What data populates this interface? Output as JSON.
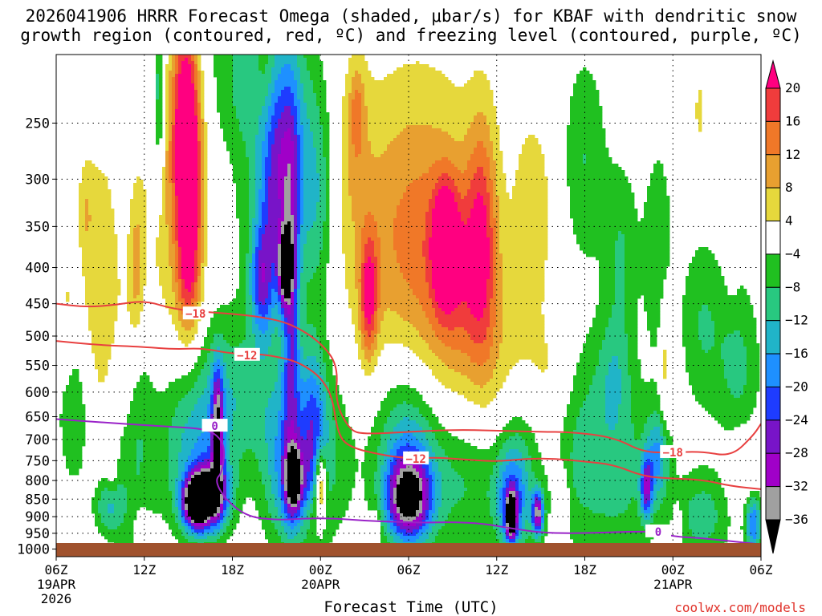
{
  "header": {
    "title_line1": "2026041906 HRRR Forecast Omega (shaded, μbar/s) for KBAF with dendritic snow",
    "title_line2": "growth region (contoured, red, ºC) and freezing level (contoured, purple, ºC)"
  },
  "footer": {
    "xlabel": "Forecast Time (UTC)",
    "credit": "coolwx.com/models"
  },
  "chart_data": {
    "type": "heatmap",
    "x_ticks": [
      {
        "hour": 0,
        "label": "06Z",
        "sub1": "19APR",
        "sub2": "2026"
      },
      {
        "hour": 6,
        "label": "12Z",
        "sub1": "",
        "sub2": ""
      },
      {
        "hour": 12,
        "label": "18Z",
        "sub1": "",
        "sub2": ""
      },
      {
        "hour": 18,
        "label": "00Z",
        "sub1": "20APR",
        "sub2": ""
      },
      {
        "hour": 24,
        "label": "06Z",
        "sub1": "",
        "sub2": ""
      },
      {
        "hour": 30,
        "label": "12Z",
        "sub1": "",
        "sub2": ""
      },
      {
        "hour": 36,
        "label": "18Z",
        "sub1": "",
        "sub2": ""
      },
      {
        "hour": 42,
        "label": "00Z",
        "sub1": "21APR",
        "sub2": ""
      },
      {
        "hour": 48,
        "label": "06Z",
        "sub1": "",
        "sub2": ""
      }
    ],
    "xlim": [
      0,
      48
    ],
    "y_ticks": [
      250,
      300,
      350,
      400,
      450,
      500,
      550,
      600,
      650,
      700,
      750,
      800,
      850,
      900,
      950,
      1000
    ],
    "ylim": [
      200,
      1025
    ],
    "y_scale": "log-pressure",
    "colorbar": {
      "labels": [
        "20",
        "16",
        "12",
        "8",
        "4",
        "−4",
        "−8",
        "−12",
        "−16",
        "−20",
        "−24",
        "−28",
        "−32",
        "−36"
      ],
      "colors": [
        "#ff0080",
        "#f03c3c",
        "#f07828",
        "#e8a030",
        "#e6d83c",
        "#ffffff",
        "#20c020",
        "#28c880",
        "#20b4c8",
        "#1e90ff",
        "#1e3cff",
        "#7814c8",
        "#a000c8",
        "#a0a0a0",
        "#000000"
      ]
    },
    "omega_blobs": [
      {
        "t": 3.0,
        "p": 480,
        "max": 9,
        "w": 1.4,
        "h": 0.55
      },
      {
        "t": 2.0,
        "p": 330,
        "max": 5,
        "w": 0.5,
        "h": 0.15
      },
      {
        "t": 0.7,
        "p": 460,
        "max": 5,
        "w": 0.5,
        "h": 0.2
      },
      {
        "t": 5.5,
        "p": 400,
        "max": 9,
        "w": 0.5,
        "h": 0.25
      },
      {
        "t": 8.8,
        "p": 240,
        "max": 19,
        "w": 0.9,
        "h": 0.35
      },
      {
        "t": 9.1,
        "p": 330,
        "max": 20,
        "w": 0.9,
        "h": 0.4
      },
      {
        "t": 7.5,
        "p": 330,
        "max": 6,
        "w": 1.6,
        "h": 0.6
      },
      {
        "t": 4.8,
        "p": 560,
        "max": 5,
        "w": 0.7,
        "h": 0.35
      },
      {
        "t": 3.8,
        "p": 780,
        "max": 5,
        "w": 0.35,
        "h": 0.08
      },
      {
        "t": 14.2,
        "p": 210,
        "max": 6,
        "w": 0.7,
        "h": 0.25
      },
      {
        "t": 15.5,
        "p": 290,
        "max": -13,
        "w": 1.2,
        "h": 0.3
      },
      {
        "t": 14.5,
        "p": 330,
        "max": -10,
        "w": 1.0,
        "h": 0.35
      },
      {
        "t": 16.0,
        "p": 260,
        "max": -9,
        "w": 2.0,
        "h": 0.5
      },
      {
        "t": 17.8,
        "p": 320,
        "max": -10,
        "w": 1.2,
        "h": 0.35
      },
      {
        "t": 7.0,
        "p": 230,
        "max": -13,
        "w": 0.4,
        "h": 0.3
      },
      {
        "t": 20.5,
        "p": 240,
        "max": 8,
        "w": 0.5,
        "h": 0.15
      },
      {
        "t": 20.2,
        "p": 270,
        "max": 5,
        "w": 1.2,
        "h": 0.3
      },
      {
        "t": 24.5,
        "p": 380,
        "max": 14,
        "w": 4.5,
        "h": 0.55
      },
      {
        "t": 26.5,
        "p": 370,
        "max": 21,
        "w": 0.8,
        "h": 0.18
      },
      {
        "t": 27.5,
        "p": 410,
        "max": 10,
        "w": 2.0,
        "h": 0.3
      },
      {
        "t": 21.3,
        "p": 440,
        "max": 18,
        "w": 0.6,
        "h": 0.2
      },
      {
        "t": 29.0,
        "p": 360,
        "max": 14,
        "w": 1.0,
        "h": 0.4
      },
      {
        "t": 32.5,
        "p": 330,
        "max": 7,
        "w": 1.3,
        "h": 0.3
      },
      {
        "t": 31.0,
        "p": 560,
        "max": 6,
        "w": 2.5,
        "h": 0.3
      },
      {
        "t": 34.0,
        "p": 580,
        "max": 4.5,
        "w": 1.5,
        "h": 0.2
      },
      {
        "t": 43.8,
        "p": 240,
        "max": 5,
        "w": 0.4,
        "h": 0.15
      },
      {
        "t": 46.0,
        "p": 370,
        "max": 5.5,
        "w": 0.4,
        "h": 0.15
      },
      {
        "t": 41.5,
        "p": 540,
        "max": 8,
        "w": 0.4,
        "h": 0.25
      },
      {
        "t": 46.8,
        "p": 770,
        "max": 6,
        "w": 1.2,
        "h": 0.15
      },
      {
        "t": 34.5,
        "p": 850,
        "max": 8,
        "w": 0.4,
        "h": 0.1
      },
      {
        "t": 42.3,
        "p": 930,
        "max": 8,
        "w": 0.3,
        "h": 0.07
      },
      {
        "t": 21.8,
        "p": 930,
        "max": 6,
        "w": 0.3,
        "h": 0.06
      },
      {
        "t": 5.8,
        "p": 930,
        "max": 6,
        "w": 0.5,
        "h": 0.06
      },
      {
        "t": 17.5,
        "p": 900,
        "max": 6,
        "w": 0.5,
        "h": 0.08
      },
      {
        "t": 11.6,
        "p": 290,
        "max": 3,
        "w": 4.0,
        "h": 0.2
      },
      {
        "t": 9.0,
        "p": 420,
        "max": 6,
        "w": 0.8,
        "h": 0.2
      },
      {
        "t": 13.0,
        "p": 230,
        "max": -10,
        "w": 2.5,
        "h": 0.5
      },
      {
        "t": 14.0,
        "p": 420,
        "max": -18,
        "w": 0.8,
        "h": 0.18
      },
      {
        "t": 15.6,
        "p": 400,
        "max": -30,
        "w": 0.5,
        "h": 0.12
      },
      {
        "t": 16.0,
        "p": 470,
        "max": -18,
        "w": 0.6,
        "h": 0.6
      },
      {
        "t": 12.0,
        "p": 600,
        "max": -10,
        "w": 4.5,
        "h": 0.25
      },
      {
        "t": 9.5,
        "p": 860,
        "max": -37,
        "w": 0.9,
        "h": 0.08
      },
      {
        "t": 10.5,
        "p": 840,
        "max": -32,
        "w": 1.2,
        "h": 0.1
      },
      {
        "t": 9.5,
        "p": 760,
        "max": -12,
        "w": 2.5,
        "h": 0.25
      },
      {
        "t": 11.0,
        "p": 680,
        "max": -26,
        "w": 0.4,
        "h": 0.2
      },
      {
        "t": 5.0,
        "p": 720,
        "max": -9,
        "w": 1.5,
        "h": 0.4
      },
      {
        "t": 3.5,
        "p": 870,
        "max": -12,
        "w": 1.0,
        "h": 0.1
      },
      {
        "t": 16.2,
        "p": 800,
        "max": -30,
        "w": 0.6,
        "h": 0.1
      },
      {
        "t": 15.5,
        "p": 780,
        "max": -14,
        "w": 1.5,
        "h": 0.25
      },
      {
        "t": 17.5,
        "p": 700,
        "max": -16,
        "w": 0.9,
        "h": 0.3
      },
      {
        "t": 18.0,
        "p": 810,
        "max": 21,
        "w": 0.4,
        "h": 0.12
      },
      {
        "t": 18.5,
        "p": 740,
        "max": -8,
        "w": 2.0,
        "h": 0.3
      },
      {
        "t": 24.0,
        "p": 850,
        "max": -30,
        "w": 1.4,
        "h": 0.12
      },
      {
        "t": 24.0,
        "p": 780,
        "max": -14,
        "w": 2.0,
        "h": 0.25
      },
      {
        "t": 23.5,
        "p": 650,
        "max": -8,
        "w": 2.5,
        "h": 0.35
      },
      {
        "t": 28.0,
        "p": 800,
        "max": -9,
        "w": 3.0,
        "h": 0.25
      },
      {
        "t": 31.0,
        "p": 900,
        "max": -38,
        "w": 0.35,
        "h": 0.07
      },
      {
        "t": 31.0,
        "p": 860,
        "max": -14,
        "w": 1.0,
        "h": 0.15
      },
      {
        "t": 32.8,
        "p": 890,
        "max": -30,
        "w": 0.4,
        "h": 0.07
      },
      {
        "t": 31.5,
        "p": 760,
        "max": -10,
        "w": 1.5,
        "h": 0.3
      },
      {
        "t": 35.5,
        "p": 700,
        "max": -8,
        "w": 2.0,
        "h": 0.35
      },
      {
        "t": 38.5,
        "p": 780,
        "max": -9,
        "w": 2.5,
        "h": 0.3
      },
      {
        "t": 40.2,
        "p": 820,
        "max": -22,
        "w": 0.4,
        "h": 0.1
      },
      {
        "t": 41.0,
        "p": 740,
        "max": -14,
        "w": 0.8,
        "h": 0.15
      },
      {
        "t": 44.0,
        "p": 900,
        "max": -10,
        "w": 2.0,
        "h": 0.15
      },
      {
        "t": 47.5,
        "p": 920,
        "max": -20,
        "w": 0.6,
        "h": 0.1
      },
      {
        "t": 41.0,
        "p": 380,
        "max": -8,
        "w": 1.0,
        "h": 0.35
      },
      {
        "t": 36.0,
        "p": 280,
        "max": -8,
        "w": 1.5,
        "h": 0.35
      },
      {
        "t": 38.5,
        "p": 380,
        "max": -8,
        "w": 1.2,
        "h": 0.3
      },
      {
        "t": 44.0,
        "p": 480,
        "max": -8,
        "w": 1.5,
        "h": 0.3
      },
      {
        "t": 46.5,
        "p": 560,
        "max": -9,
        "w": 1.5,
        "h": 0.3
      },
      {
        "t": 1.5,
        "p": 640,
        "max": -8,
        "w": 1.5,
        "h": 0.3
      },
      {
        "t": 38.0,
        "p": 560,
        "max": -8,
        "w": 1.2,
        "h": 0.2
      }
    ],
    "contours": [
      {
        "label": "−18",
        "color": "#e84040",
        "label_at": [
          9.5,
          465
        ],
        "label2_at": [
          42.0,
          730
        ],
        "points": [
          [
            0,
            450
          ],
          [
            2,
            455
          ],
          [
            4,
            452
          ],
          [
            6,
            445
          ],
          [
            8,
            458
          ],
          [
            10,
            462
          ],
          [
            12,
            465
          ],
          [
            14,
            470
          ],
          [
            16,
            480
          ],
          [
            18,
            510
          ],
          [
            19.2,
            550
          ],
          [
            19.0,
            620
          ],
          [
            20,
            680
          ],
          [
            21,
            688
          ],
          [
            24,
            683
          ],
          [
            27,
            678
          ],
          [
            30,
            680
          ],
          [
            33,
            683
          ],
          [
            35,
            683
          ],
          [
            38,
            695
          ],
          [
            40,
            730
          ],
          [
            42,
            730
          ],
          [
            44,
            728
          ],
          [
            46,
            740
          ],
          [
            47.5,
            690
          ],
          [
            48,
            665
          ]
        ]
      },
      {
        "label": "−12",
        "color": "#e84040",
        "label_at": [
          13.0,
          532
        ],
        "label2_at": [
          24.5,
          745
        ],
        "points": [
          [
            0,
            508
          ],
          [
            3,
            515
          ],
          [
            6,
            518
          ],
          [
            8,
            522
          ],
          [
            10,
            520
          ],
          [
            12,
            530
          ],
          [
            14,
            530
          ],
          [
            16,
            540
          ],
          [
            17,
            552
          ],
          [
            18,
            572
          ],
          [
            18.8,
            608
          ],
          [
            19.2,
            690
          ],
          [
            20,
            718
          ],
          [
            22,
            735
          ],
          [
            24,
            745
          ],
          [
            26,
            742
          ],
          [
            28,
            748
          ],
          [
            30,
            752
          ],
          [
            32,
            745
          ],
          [
            34,
            745
          ],
          [
            36,
            752
          ],
          [
            38,
            760
          ],
          [
            40,
            790
          ],
          [
            42,
            795
          ],
          [
            44,
            798
          ],
          [
            46,
            815
          ],
          [
            48,
            823
          ]
        ]
      },
      {
        "label": "0",
        "color": "#9a22c8",
        "label_at": [
          10.8,
          670
        ],
        "label2_at": [
          41.0,
          945
        ],
        "points": [
          [
            0,
            655
          ],
          [
            3,
            662
          ],
          [
            6,
            668
          ],
          [
            8,
            672
          ],
          [
            10,
            676
          ],
          [
            11,
            690
          ],
          [
            11.5,
            720
          ],
          [
            11.3,
            780
          ],
          [
            10.8,
            800
          ],
          [
            11.5,
            850
          ],
          [
            13,
            900
          ],
          [
            15,
            910
          ],
          [
            17,
            905
          ],
          [
            19,
            905
          ],
          [
            21,
            912
          ],
          [
            23,
            915
          ],
          [
            25,
            918
          ],
          [
            27,
            916
          ],
          [
            29,
            920
          ],
          [
            31,
            935
          ],
          [
            33,
            948
          ],
          [
            35,
            950
          ],
          [
            37,
            948
          ],
          [
            39,
            945
          ],
          [
            41,
            945
          ],
          [
            42,
            960
          ],
          [
            44,
            965
          ],
          [
            46,
            975
          ],
          [
            48,
            985
          ]
        ]
      }
    ]
  }
}
